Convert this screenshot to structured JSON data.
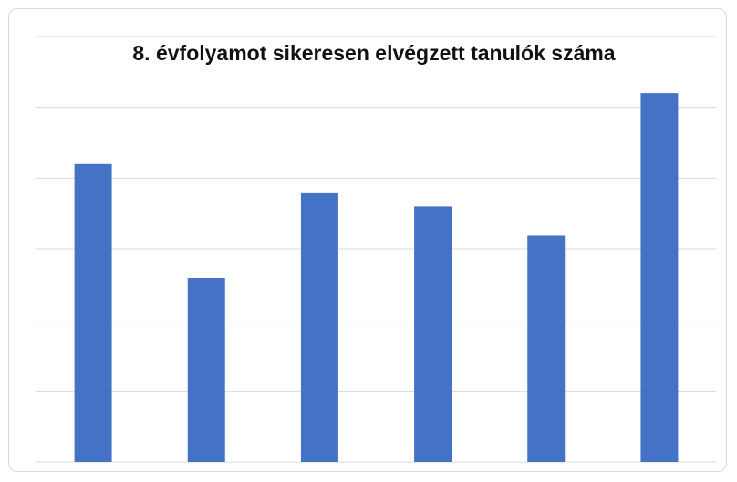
{
  "chart_data": {
    "type": "bar",
    "title": "8. évfolyamot sikeresen elvégzett tanulók száma",
    "categories": [
      null,
      null,
      null,
      null,
      null,
      null
    ],
    "values": [
      4.2,
      2.6,
      3.8,
      3.6,
      3.2,
      5.2
    ],
    "color": "#4472c4",
    "ylim": [
      0,
      6
    ],
    "yticks": [
      0,
      1,
      2,
      3,
      4,
      5,
      6
    ],
    "grid": true
  }
}
